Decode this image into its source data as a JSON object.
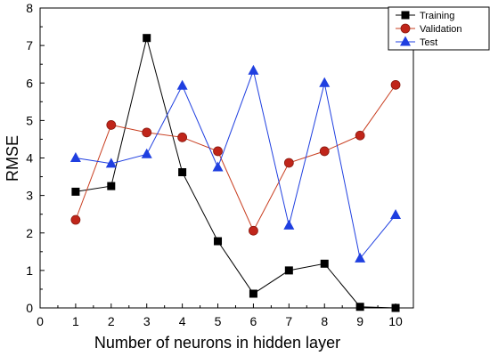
{
  "chart_data": {
    "type": "line",
    "title": "",
    "xlabel": "Number of neurons in hidden layer",
    "ylabel": "RMSE",
    "xlim": [
      0,
      10.5
    ],
    "ylim": [
      0,
      8
    ],
    "xticks": [
      0,
      1,
      2,
      3,
      4,
      5,
      6,
      7,
      8,
      9,
      10
    ],
    "yticks": [
      0,
      1,
      2,
      3,
      4,
      5,
      6,
      7,
      8
    ],
    "grid": false,
    "legend_position": "top-right",
    "x": [
      1,
      2,
      3,
      4,
      5,
      6,
      7,
      8,
      9,
      10
    ],
    "series": [
      {
        "name": "Training",
        "marker": "square",
        "line_color": "#000000",
        "marker_color": "#000000",
        "values": [
          3.1,
          3.25,
          7.2,
          3.62,
          1.78,
          0.38,
          1.0,
          1.18,
          0.03,
          0.0
        ]
      },
      {
        "name": "Validation",
        "marker": "circle",
        "line_color": "#c83c1e",
        "marker_color": "#c0251a",
        "values": [
          2.35,
          4.88,
          4.68,
          4.55,
          4.18,
          2.06,
          3.87,
          4.18,
          4.6,
          5.95
        ]
      },
      {
        "name": "Test",
        "marker": "triangle",
        "line_color": "#1f3fe0",
        "marker_color": "#1f3fe0",
        "values": [
          4.0,
          3.85,
          4.1,
          5.93,
          3.75,
          6.33,
          2.2,
          6.0,
          1.32,
          2.48
        ]
      }
    ]
  }
}
